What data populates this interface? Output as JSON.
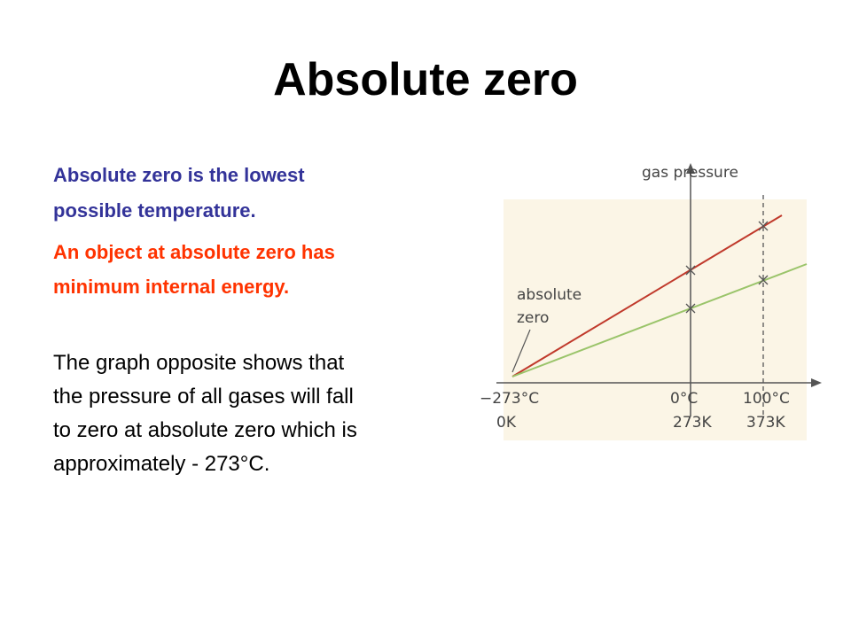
{
  "title": "Absolute zero",
  "paragraphs": [
    {
      "lines": [
        "Absolute zero is the lowest",
        "possible temperature."
      ]
    },
    {
      "lines": [
        "An object at absolute zero has",
        "minimum internal energy."
      ]
    },
    {
      "lines": [
        "The graph opposite shows that",
        "the pressure of all gases will fall",
        "to zero at absolute zero which is",
        "approximately  - 273°C."
      ]
    }
  ],
  "figure": {
    "y_label": "gas pressure",
    "annotation": [
      "absolute",
      "zero"
    ],
    "x_labels": [
      {
        "celsius": "−273°C",
        "kelvin": "0K"
      },
      {
        "celsius": "0°C",
        "kelvin": "273K"
      },
      {
        "celsius": "100°C",
        "kelvin": "373K"
      }
    ]
  }
}
